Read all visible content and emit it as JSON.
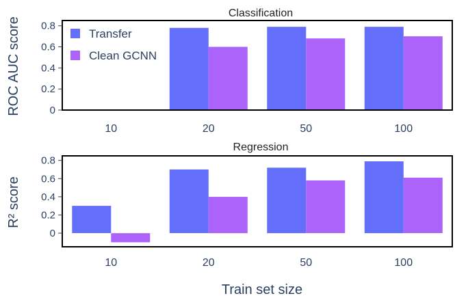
{
  "chart_data": [
    {
      "type": "bar",
      "title": "Classification",
      "ylabel": "ROC AUC score",
      "xlabel": "",
      "categories": [
        "10",
        "20",
        "50",
        "100"
      ],
      "series": [
        {
          "name": "Transfer",
          "values": [
            null,
            0.78,
            0.79,
            0.79
          ]
        },
        {
          "name": "Clean GCNN",
          "values": [
            null,
            0.6,
            0.68,
            0.7
          ]
        }
      ],
      "ylim": [
        0,
        0.85
      ],
      "yticks": [
        "0",
        "0.2",
        "0.4",
        "0.6",
        "0.8"
      ],
      "grid": false,
      "legend": "top-left"
    },
    {
      "type": "bar",
      "title": "Regression",
      "ylabel": "R² score",
      "xlabel": "Train set size",
      "categories": [
        "10",
        "20",
        "50",
        "100"
      ],
      "series": [
        {
          "name": "Transfer",
          "values": [
            0.3,
            0.7,
            0.72,
            0.79
          ]
        },
        {
          "name": "Clean GCNN",
          "values": [
            -0.1,
            0.4,
            0.58,
            0.61
          ]
        }
      ],
      "ylim": [
        -0.15,
        0.85
      ],
      "yticks": [
        "0",
        "0.2",
        "0.4",
        "0.6",
        "0.8"
      ],
      "grid": false
    }
  ],
  "colors": {
    "Transfer": "#636efa",
    "Clean GCNN": "#ab63fa"
  }
}
